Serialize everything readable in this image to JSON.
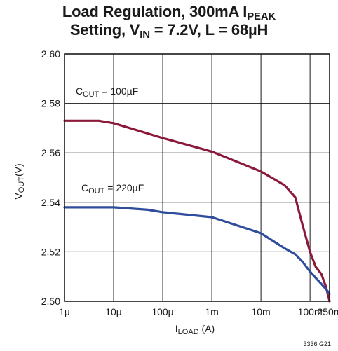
{
  "chart_data": {
    "type": "line",
    "title_line1": {
      "text": "Load Regulation, 300mA I",
      "sub": "PEAK"
    },
    "title_line2": {
      "pre": "Setting, V",
      "sub": "IN",
      "post": " = 7.2V, L = 68µH"
    },
    "xlabel": {
      "main": "I",
      "sub": "LOAD",
      "post": " (A)"
    },
    "ylabel": {
      "main": "V",
      "sub": "OUT",
      "post": "(V)"
    },
    "x_scale": "log",
    "xlim": [
      1e-06,
      0.25
    ],
    "ylim": [
      2.5,
      2.6
    ],
    "x_ticks": [
      {
        "value": 1e-06,
        "label": "1µ"
      },
      {
        "value": 1e-05,
        "label": "10µ"
      },
      {
        "value": 0.0001,
        "label": "100µ"
      },
      {
        "value": 0.001,
        "label": "1m"
      },
      {
        "value": 0.01,
        "label": "10m"
      },
      {
        "value": 0.1,
        "label": "100m"
      },
      {
        "value": 0.25,
        "label": "250m"
      }
    ],
    "y_ticks": [
      {
        "value": 2.5,
        "label": "2.50"
      },
      {
        "value": 2.52,
        "label": "2.52"
      },
      {
        "value": 2.54,
        "label": "2.54"
      },
      {
        "value": 2.56,
        "label": "2.56"
      },
      {
        "value": 2.58,
        "label": "2.58"
      },
      {
        "value": 2.6,
        "label": "2.60"
      }
    ],
    "grid": true,
    "series": [
      {
        "name": {
          "main": "C",
          "sub": "OUT",
          "post": " = 100µF"
        },
        "color": "#8b1a3a",
        "x": [
          1e-06,
          5e-06,
          1e-05,
          0.0001,
          0.001,
          0.01,
          0.03,
          0.05,
          0.07,
          0.1,
          0.13,
          0.17,
          0.21,
          0.25
        ],
        "y": [
          2.573,
          2.573,
          2.572,
          2.566,
          2.5605,
          2.5525,
          2.547,
          2.542,
          2.531,
          2.52,
          2.514,
          2.511,
          2.506,
          2.5
        ]
      },
      {
        "name": {
          "main": "C",
          "sub": "OUT",
          "post": " = 220µF"
        },
        "color": "#2f4d9c",
        "x": [
          1e-06,
          1e-05,
          5e-05,
          0.0001,
          0.001,
          0.01,
          0.03,
          0.05,
          0.07,
          0.1,
          0.13,
          0.17,
          0.21,
          0.25
        ],
        "y": [
          2.538,
          2.538,
          2.537,
          2.536,
          2.534,
          2.5275,
          2.5215,
          2.519,
          2.516,
          2.512,
          2.5095,
          2.507,
          2.505,
          2.503
        ]
      }
    ],
    "figure_number": "3336 G21"
  }
}
